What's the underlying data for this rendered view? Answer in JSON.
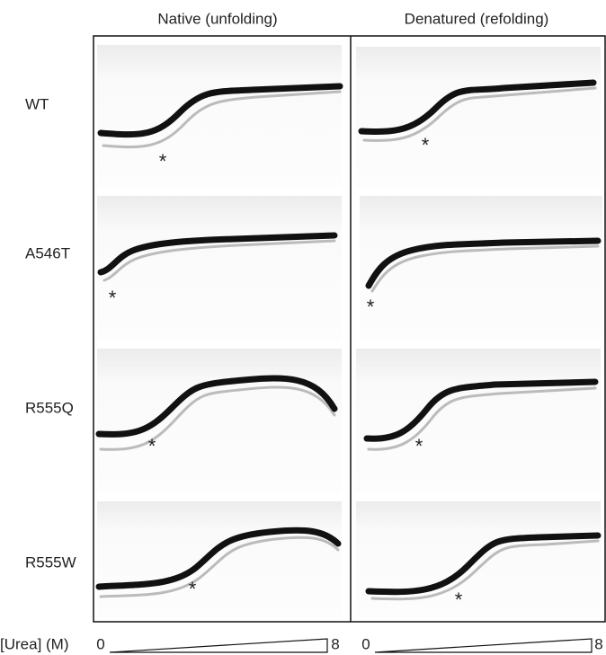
{
  "figure": {
    "columns": [
      "Native (unfolding)",
      "Denatured (refolding)"
    ],
    "rows": [
      "WT",
      "A546T",
      "R555Q",
      "R555W"
    ],
    "marker": "*",
    "axis": {
      "label": "[Urea] (M)",
      "start": "0",
      "end": "8"
    }
  }
}
